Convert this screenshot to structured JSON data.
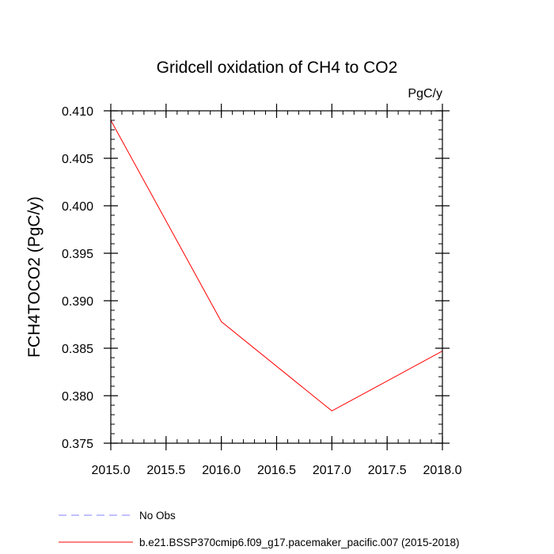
{
  "chart_data": {
    "type": "line",
    "title": "Gridcell oxidation of CH4 to CO2",
    "units_label": "PgC/y",
    "xlabel": "",
    "ylabel": "FCH4TOCO2  (PgC/y)",
    "xlim": [
      2015.0,
      2018.0
    ],
    "ylim": [
      0.375,
      0.41
    ],
    "x_ticks": [
      2015.0,
      2015.5,
      2016.0,
      2016.5,
      2017.0,
      2017.5,
      2018.0
    ],
    "x_tick_labels": [
      "2015.0",
      "2015.5",
      "2016.0",
      "2016.5",
      "2017.0",
      "2017.5",
      "2018.0"
    ],
    "y_ticks": [
      0.375,
      0.38,
      0.385,
      0.39,
      0.395,
      0.4,
      0.405,
      0.41
    ],
    "y_tick_labels": [
      "0.375",
      "0.380",
      "0.385",
      "0.390",
      "0.395",
      "0.400",
      "0.405",
      "0.410"
    ],
    "x_minor_step": 0.1,
    "y_minor_step": 0.001,
    "series": [
      {
        "name": "b.e21.BSSP370cmip6.f09_g17.pacemaker_pacific.007 (2015-2018)",
        "color": "#ff0000",
        "dash": "solid",
        "x": [
          2015,
          2016,
          2017,
          2018
        ],
        "values": [
          0.409,
          0.3878,
          0.3784,
          0.3847
        ]
      }
    ],
    "legend": [
      {
        "label": "No Obs",
        "color": "#8080ff",
        "dash": "dashed"
      },
      {
        "label": "b.e21.BSSP370cmip6.f09_g17.pacemaker_pacific.007 (2015-2018)",
        "color": "#ff0000",
        "dash": "solid"
      }
    ]
  }
}
